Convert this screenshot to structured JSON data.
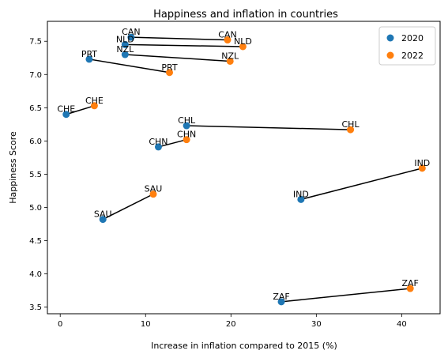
{
  "chart_data": {
    "type": "scatter",
    "title": "Happiness and inflation in countries",
    "xlabel": "Increase in inflation compared to 2015 (%)",
    "ylabel": "Happiness Score",
    "xlim": [
      -1.5,
      44.5
    ],
    "ylim": [
      3.4,
      7.8
    ],
    "xticks": [
      0,
      10,
      20,
      30,
      40
    ],
    "yticks": [
      3.5,
      4.0,
      4.5,
      5.0,
      5.5,
      6.0,
      6.5,
      7.0,
      7.5
    ],
    "ytick_labels": [
      "3.5",
      "4.0",
      "4.5",
      "5.0",
      "5.5",
      "6.0",
      "6.5",
      "7.0",
      "7.5"
    ],
    "grid": false,
    "legend_position": "top-right",
    "series": [
      {
        "name": "2020",
        "color": "#1f77b4",
        "points": [
          {
            "label": "CAN",
            "x": 8.3,
            "y": 7.56
          },
          {
            "label": "NLD",
            "x": 7.6,
            "y": 7.45
          },
          {
            "label": "NZL",
            "x": 7.6,
            "y": 7.3
          },
          {
            "label": "PRT",
            "x": 3.4,
            "y": 7.23
          },
          {
            "label": "CHE",
            "x": 0.7,
            "y": 6.4
          },
          {
            "label": "CHL",
            "x": 14.8,
            "y": 6.23
          },
          {
            "label": "CHN",
            "x": 11.5,
            "y": 5.91
          },
          {
            "label": "IND",
            "x": 28.2,
            "y": 5.12
          },
          {
            "label": "SAU",
            "x": 5.0,
            "y": 4.82
          },
          {
            "label": "ZAF",
            "x": 25.9,
            "y": 3.58
          }
        ]
      },
      {
        "name": "2022",
        "color": "#ff7f0e",
        "points": [
          {
            "label": "CAN",
            "x": 19.6,
            "y": 7.52
          },
          {
            "label": "NLD",
            "x": 21.4,
            "y": 7.42
          },
          {
            "label": "NZL",
            "x": 19.9,
            "y": 7.2
          },
          {
            "label": "PRT",
            "x": 12.8,
            "y": 7.03
          },
          {
            "label": "CHE",
            "x": 4.0,
            "y": 6.53
          },
          {
            "label": "CHL",
            "x": 34.0,
            "y": 6.17
          },
          {
            "label": "CHN",
            "x": 14.8,
            "y": 6.02
          },
          {
            "label": "IND",
            "x": 42.4,
            "y": 5.59
          },
          {
            "label": "SAU",
            "x": 10.9,
            "y": 5.2
          },
          {
            "label": "ZAF",
            "x": 41.0,
            "y": 3.78
          }
        ]
      }
    ]
  }
}
